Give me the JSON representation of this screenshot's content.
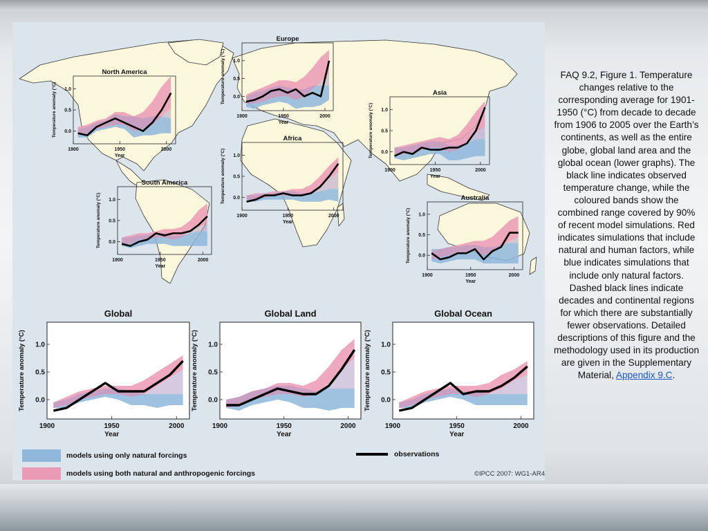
{
  "caption": {
    "text": "FAQ 9.2, Figure 1. Temperature changes relative to the corresponding average for 1901-1950 (°C) from decade to decade from 1906 to 2005 over the Earth’s continents, as well as the entire globe, global land area and the global ocean (lower graphs). The black line indicates observed temperature change, while the coloured bands show the combined range covered by 90% of recent model simulations. Red indicates simulations that include natural and human factors, while blue indicates simulations that include only natural factors. Dashed black lines indicate decades and continental regions for which there are substantially fewer observations. Detailed descriptions of this figure and the methodology used in its production are given in the Supplementary Material, ",
    "link_text": "Appendix 9.C",
    "trailing": "."
  },
  "legend": {
    "natural": "models using only natural forcings",
    "both": "models using both natural and anthropogenic forcings",
    "observations": "observations"
  },
  "credit": "©IPCC 2007: WG1-AR4",
  "colors": {
    "natural_band": "#8fb7dc",
    "combined_band": "#eb9ab5",
    "overlap": "#b49fc6",
    "observed": "#000000",
    "map_land": "#fbf7dc",
    "map_ocean": "#d8e2ea"
  },
  "chart_data": [
    {
      "type": "line",
      "title": "North America",
      "x": [
        1905,
        1915,
        1925,
        1935,
        1945,
        1955,
        1965,
        1975,
        1985,
        1995,
        2005
      ],
      "observed": [
        -0.05,
        -0.1,
        0.1,
        0.2,
        0.3,
        0.2,
        0.1,
        0.0,
        0.2,
        0.5,
        0.9
      ],
      "natural_band": {
        "lower": [
          -0.15,
          -0.15,
          0.0,
          0.05,
          0.1,
          0.05,
          -0.15,
          -0.1,
          -0.1,
          -0.05,
          -0.05
        ],
        "upper": [
          0.05,
          0.1,
          0.2,
          0.25,
          0.4,
          0.35,
          0.35,
          0.3,
          0.35,
          0.35,
          0.3
        ]
      },
      "combined_band": {
        "lower": [
          -0.1,
          -0.05,
          0.05,
          0.1,
          0.15,
          0.15,
          0.0,
          0.05,
          0.15,
          0.35,
          0.55
        ],
        "upper": [
          0.1,
          0.15,
          0.25,
          0.3,
          0.45,
          0.45,
          0.35,
          0.45,
          0.7,
          1.05,
          1.3
        ]
      },
      "xlabel": "Year",
      "ylabel": "Temperature anomaly (°C)",
      "yticks": [
        0.0,
        0.5,
        1.0
      ],
      "xticks": [
        1900,
        1950,
        2000
      ],
      "ylim": [
        -0.3,
        1.3
      ]
    },
    {
      "type": "line",
      "title": "Europe",
      "x": [
        1905,
        1915,
        1925,
        1935,
        1945,
        1955,
        1965,
        1975,
        1985,
        1995,
        2005
      ],
      "observed": [
        -0.15,
        -0.1,
        0.0,
        0.15,
        0.2,
        0.1,
        0.2,
        0.0,
        0.1,
        0.0,
        1.0
      ],
      "natural_band": {
        "lower": [
          -0.3,
          -0.35,
          -0.25,
          -0.2,
          -0.15,
          -0.2,
          -0.35,
          -0.3,
          -0.3,
          -0.25,
          -0.1
        ],
        "upper": [
          0.0,
          0.1,
          0.15,
          0.25,
          0.3,
          0.25,
          0.2,
          0.2,
          0.3,
          0.3,
          0.3
        ]
      },
      "combined_band": {
        "lower": [
          -0.2,
          -0.2,
          -0.15,
          -0.05,
          0.0,
          0.0,
          -0.1,
          0.0,
          0.2,
          0.4,
          0.65
        ],
        "upper": [
          0.05,
          0.15,
          0.25,
          0.35,
          0.45,
          0.45,
          0.4,
          0.55,
          0.8,
          1.1,
          1.3
        ]
      },
      "xlabel": "Year",
      "ylabel": "Temperature anomaly (°C)",
      "yticks": [
        0.0,
        0.5,
        1.0
      ],
      "xticks": [
        1900,
        1950,
        2000
      ],
      "ylim": [
        -0.4,
        1.5
      ]
    },
    {
      "type": "line",
      "title": "Asia",
      "x": [
        1905,
        1915,
        1925,
        1935,
        1945,
        1955,
        1965,
        1975,
        1985,
        1995,
        2005
      ],
      "observed": [
        -0.1,
        0.0,
        -0.05,
        0.1,
        0.05,
        0.05,
        0.1,
        0.1,
        0.2,
        0.5,
        1.05
      ],
      "natural_band": {
        "lower": [
          -0.15,
          -0.2,
          -0.15,
          -0.1,
          -0.05,
          -0.05,
          -0.2,
          -0.2,
          -0.15,
          -0.1,
          -0.1
        ],
        "upper": [
          0.1,
          0.1,
          0.15,
          0.2,
          0.25,
          0.25,
          0.15,
          0.15,
          0.2,
          0.3,
          0.3
        ]
      },
      "combined_band": {
        "lower": [
          -0.1,
          -0.05,
          0.0,
          0.05,
          0.1,
          0.1,
          0.0,
          0.05,
          0.25,
          0.45,
          0.6
        ],
        "upper": [
          0.1,
          0.15,
          0.2,
          0.25,
          0.3,
          0.35,
          0.3,
          0.4,
          0.65,
          0.95,
          1.2
        ]
      },
      "xlabel": "Year",
      "ylabel": "Temperature anomaly (°C)",
      "yticks": [
        0.0,
        0.5,
        1.0
      ],
      "xticks": [
        1900,
        1950,
        2000
      ],
      "ylim": [
        -0.3,
        1.3
      ]
    },
    {
      "type": "line",
      "title": "Africa",
      "x": [
        1905,
        1915,
        1925,
        1935,
        1945,
        1955,
        1965,
        1975,
        1985,
        1995,
        2005
      ],
      "observed": [
        -0.1,
        -0.05,
        0.05,
        0.05,
        0.1,
        0.05,
        0.05,
        0.1,
        0.25,
        0.5,
        0.8
      ],
      "natural_band": {
        "lower": [
          -0.1,
          -0.1,
          -0.05,
          -0.05,
          -0.05,
          -0.05,
          -0.1,
          -0.1,
          -0.1,
          -0.05,
          -0.1
        ],
        "upper": [
          0.05,
          0.05,
          0.1,
          0.1,
          0.15,
          0.15,
          0.1,
          0.1,
          0.15,
          0.2,
          0.2
        ]
      },
      "combined_band": {
        "lower": [
          -0.05,
          -0.05,
          0.0,
          0.05,
          0.05,
          0.05,
          0.05,
          0.1,
          0.25,
          0.45,
          0.6
        ],
        "upper": [
          0.05,
          0.1,
          0.1,
          0.15,
          0.15,
          0.2,
          0.2,
          0.3,
          0.5,
          0.75,
          0.95
        ]
      },
      "xlabel": "Year",
      "ylabel": "Temperature anomaly (°C)",
      "yticks": [
        0.0,
        0.5,
        1.0
      ],
      "xticks": [
        1900,
        1950,
        2000
      ],
      "ylim": [
        -0.3,
        1.3
      ]
    },
    {
      "type": "line",
      "title": "South America",
      "x": [
        1905,
        1915,
        1925,
        1935,
        1945,
        1955,
        1965,
        1975,
        1985,
        1995,
        2005
      ],
      "observed": [
        -0.05,
        -0.1,
        0.0,
        0.05,
        0.2,
        0.15,
        0.2,
        0.2,
        0.25,
        0.4,
        0.6
      ],
      "natural_band": {
        "lower": [
          -0.1,
          -0.15,
          -0.1,
          -0.05,
          -0.05,
          -0.05,
          -0.1,
          -0.1,
          -0.1,
          -0.1,
          -0.1
        ],
        "upper": [
          0.1,
          0.1,
          0.15,
          0.15,
          0.2,
          0.2,
          0.15,
          0.15,
          0.2,
          0.25,
          0.25
        ]
      },
      "combined_band": {
        "lower": [
          -0.05,
          -0.05,
          0.05,
          0.05,
          0.1,
          0.1,
          0.05,
          0.1,
          0.25,
          0.35,
          0.45
        ],
        "upper": [
          0.1,
          0.15,
          0.2,
          0.2,
          0.25,
          0.3,
          0.3,
          0.35,
          0.5,
          0.75,
          0.9
        ]
      },
      "xlabel": "Year",
      "ylabel": "Temperature anomaly (°C)",
      "yticks": [
        0.0,
        0.5,
        1.0
      ],
      "xticks": [
        1900,
        1950,
        2000
      ],
      "ylim": [
        -0.3,
        1.3
      ]
    },
    {
      "type": "line",
      "title": "Australia",
      "x": [
        1905,
        1915,
        1925,
        1935,
        1945,
        1955,
        1965,
        1975,
        1985,
        1995,
        2005
      ],
      "observed": [
        0.05,
        -0.1,
        -0.05,
        0.05,
        0.05,
        0.15,
        -0.1,
        0.1,
        0.2,
        0.55,
        0.55
      ],
      "natural_band": {
        "lower": [
          -0.15,
          -0.2,
          -0.15,
          -0.1,
          -0.1,
          -0.1,
          -0.2,
          -0.2,
          -0.2,
          -0.2,
          -0.2
        ],
        "upper": [
          0.15,
          0.15,
          0.2,
          0.2,
          0.25,
          0.25,
          0.2,
          0.2,
          0.25,
          0.3,
          0.3
        ]
      },
      "combined_band": {
        "lower": [
          -0.1,
          -0.05,
          0.0,
          0.05,
          0.05,
          0.1,
          0.0,
          0.1,
          0.2,
          0.35,
          0.45
        ],
        "upper": [
          0.1,
          0.15,
          0.2,
          0.25,
          0.3,
          0.35,
          0.35,
          0.45,
          0.65,
          0.85,
          0.95
        ]
      },
      "xlabel": "Year",
      "ylabel": "Temperature anomaly (°C)",
      "yticks": [
        0.0,
        0.5,
        1.0
      ],
      "xticks": [
        1900,
        1950,
        2000
      ],
      "ylim": [
        -0.35,
        1.3
      ]
    },
    {
      "type": "line",
      "title": "Global",
      "x": [
        1905,
        1915,
        1925,
        1935,
        1945,
        1955,
        1965,
        1975,
        1985,
        1995,
        2005
      ],
      "observed": [
        -0.2,
        -0.15,
        0.0,
        0.15,
        0.3,
        0.15,
        0.15,
        0.15,
        0.3,
        0.45,
        0.7
      ],
      "natural_band": {
        "lower": [
          -0.15,
          -0.15,
          -0.05,
          0.0,
          0.05,
          0.0,
          -0.1,
          -0.1,
          -0.15,
          -0.1,
          -0.1
        ],
        "upper": [
          -0.05,
          0.0,
          0.1,
          0.15,
          0.2,
          0.2,
          0.15,
          0.1,
          0.1,
          0.1,
          0.1
        ]
      },
      "combined_band": {
        "lower": [
          -0.15,
          -0.1,
          0.0,
          0.05,
          0.1,
          0.1,
          0.05,
          0.1,
          0.25,
          0.4,
          0.55
        ],
        "upper": [
          -0.05,
          0.05,
          0.15,
          0.2,
          0.25,
          0.25,
          0.25,
          0.35,
          0.5,
          0.65,
          0.8
        ]
      },
      "xlabel": "Year",
      "ylabel": "Temperature anomaly (°C)",
      "yticks": [
        0.0,
        0.5,
        1.0
      ],
      "xticks": [
        1900,
        1950,
        2000
      ],
      "ylim": [
        -0.35,
        1.4
      ]
    },
    {
      "type": "line",
      "title": "Global Land",
      "x": [
        1905,
        1915,
        1925,
        1935,
        1945,
        1955,
        1965,
        1975,
        1985,
        1995,
        2005
      ],
      "observed": [
        -0.1,
        -0.1,
        0.0,
        0.1,
        0.2,
        0.15,
        0.1,
        0.1,
        0.25,
        0.55,
        0.9
      ],
      "natural_band": {
        "lower": [
          -0.15,
          -0.2,
          -0.1,
          -0.05,
          0.0,
          -0.05,
          -0.15,
          -0.15,
          -0.2,
          -0.15,
          -0.15
        ],
        "upper": [
          0.0,
          0.05,
          0.15,
          0.2,
          0.25,
          0.25,
          0.2,
          0.15,
          0.2,
          0.2,
          0.2
        ]
      },
      "combined_band": {
        "lower": [
          -0.15,
          -0.1,
          0.0,
          0.05,
          0.1,
          0.1,
          0.05,
          0.1,
          0.3,
          0.55,
          0.75
        ],
        "upper": [
          0.0,
          0.05,
          0.15,
          0.2,
          0.3,
          0.3,
          0.25,
          0.35,
          0.6,
          0.9,
          1.1
        ]
      },
      "xlabel": "Year",
      "ylabel": "Temperature anomaly (°C)",
      "yticks": [
        0.0,
        0.5,
        1.0
      ],
      "xticks": [
        1900,
        1950,
        2000
      ],
      "ylim": [
        -0.35,
        1.4
      ]
    },
    {
      "type": "line",
      "title": "Global Ocean",
      "x": [
        1905,
        1915,
        1925,
        1935,
        1945,
        1955,
        1965,
        1975,
        1985,
        1995,
        2005
      ],
      "observed": [
        -0.2,
        -0.15,
        0.0,
        0.15,
        0.3,
        0.1,
        0.15,
        0.15,
        0.25,
        0.4,
        0.6
      ],
      "natural_band": {
        "lower": [
          -0.15,
          -0.15,
          -0.05,
          0.0,
          0.05,
          0.0,
          -0.1,
          -0.1,
          -0.1,
          -0.1,
          -0.1
        ],
        "upper": [
          -0.05,
          0.0,
          0.1,
          0.15,
          0.2,
          0.15,
          0.15,
          0.1,
          0.1,
          0.1,
          0.1
        ]
      },
      "combined_band": {
        "lower": [
          -0.15,
          -0.1,
          0.0,
          0.05,
          0.1,
          0.1,
          0.05,
          0.1,
          0.2,
          0.35,
          0.45
        ],
        "upper": [
          -0.05,
          0.05,
          0.15,
          0.2,
          0.25,
          0.25,
          0.25,
          0.3,
          0.45,
          0.55,
          0.7
        ]
      },
      "xlabel": "Year",
      "ylabel": "Temperature anomaly (°C)",
      "yticks": [
        0.0,
        0.5,
        1.0
      ],
      "xticks": [
        1900,
        1950,
        2000
      ],
      "ylim": [
        -0.35,
        1.4
      ]
    }
  ]
}
